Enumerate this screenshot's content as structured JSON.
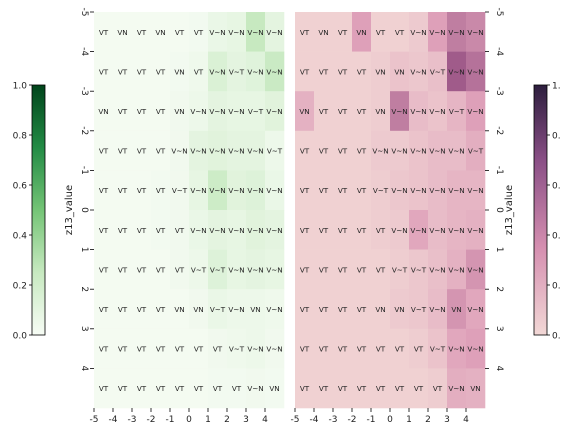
{
  "chart_data": [
    {
      "type": "heatmap",
      "panel": "left",
      "x_ticks": [
        "-5",
        "-4",
        "-3",
        "-2",
        "-1",
        "0",
        "1",
        "2",
        "3",
        "4"
      ],
      "y_ticks": [
        "-5",
        "-4",
        "-3",
        "-2",
        "-1",
        "0",
        "1",
        "2",
        "3",
        "4"
      ],
      "colormap": "Greens",
      "colorbar": {
        "label": "z13_value",
        "ticks": [
          "0.0",
          "0.2",
          "0.4",
          "0.6",
          "0.8",
          "1.0"
        ],
        "range": [
          0,
          1
        ]
      },
      "labels": [
        [
          "VT",
          "VN",
          "VT",
          "VN",
          "VT",
          "VT",
          "V~N",
          "V~N",
          "V~N",
          "V~N"
        ],
        [
          "VT",
          "VT",
          "VT",
          "VT",
          "VN",
          "VT",
          "V~N",
          "V~T",
          "V~N",
          "V~N"
        ],
        [
          "VN",
          "VT",
          "VT",
          "VT",
          "VN",
          "V~N",
          "V~N",
          "V~N",
          "V~T",
          "V~N"
        ],
        [
          "VT",
          "VT",
          "VT",
          "VT",
          "V~N",
          "V~N",
          "V~N",
          "V~N",
          "V~N",
          "V~T"
        ],
        [
          "VT",
          "VT",
          "VT",
          "VT",
          "V~T",
          "V~N",
          "V~N",
          "V~N",
          "V~N",
          "V~N"
        ],
        [
          "VT",
          "VT",
          "VT",
          "VT",
          "VT",
          "V~N",
          "V~N",
          "V~N",
          "V~N",
          "V~N"
        ],
        [
          "VT",
          "VT",
          "VT",
          "VT",
          "VT",
          "V~T",
          "V~T",
          "V~N",
          "V~N",
          "V~N"
        ],
        [
          "VT",
          "VT",
          "VT",
          "VT",
          "VN",
          "VN",
          "V~T",
          "V~N",
          "VN",
          "V~N"
        ],
        [
          "VT",
          "VT",
          "VT",
          "VT",
          "VT",
          "VT",
          "VT",
          "V~T",
          "V~N",
          "V~N"
        ],
        [
          "VT",
          "VT",
          "VT",
          "VT",
          "VT",
          "VT",
          "VT",
          "VT",
          "V~N",
          "VN"
        ]
      ],
      "values": [
        [
          0.02,
          0.02,
          0.02,
          0.02,
          0.02,
          0.03,
          0.08,
          0.1,
          0.3,
          0.12
        ],
        [
          0.02,
          0.02,
          0.02,
          0.02,
          0.03,
          0.05,
          0.18,
          0.12,
          0.15,
          0.28
        ],
        [
          0.02,
          0.02,
          0.02,
          0.02,
          0.04,
          0.06,
          0.12,
          0.1,
          0.1,
          0.14
        ],
        [
          0.02,
          0.02,
          0.02,
          0.02,
          0.04,
          0.12,
          0.14,
          0.12,
          0.12,
          0.06
        ],
        [
          0.02,
          0.02,
          0.02,
          0.03,
          0.04,
          0.1,
          0.26,
          0.14,
          0.16,
          0.08
        ],
        [
          0.02,
          0.02,
          0.02,
          0.03,
          0.04,
          0.08,
          0.12,
          0.1,
          0.14,
          0.12
        ],
        [
          0.02,
          0.02,
          0.02,
          0.02,
          0.04,
          0.06,
          0.16,
          0.1,
          0.12,
          0.1
        ],
        [
          0.02,
          0.02,
          0.02,
          0.02,
          0.02,
          0.04,
          0.08,
          0.06,
          0.06,
          0.05
        ],
        [
          0.02,
          0.02,
          0.02,
          0.02,
          0.02,
          0.02,
          0.04,
          0.05,
          0.06,
          0.04
        ],
        [
          0.02,
          0.02,
          0.02,
          0.02,
          0.02,
          0.02,
          0.03,
          0.03,
          0.04,
          0.03
        ]
      ]
    },
    {
      "type": "heatmap",
      "panel": "right",
      "x_ticks": [
        "-5",
        "-4",
        "-3",
        "-2",
        "-1",
        "0",
        "1",
        "2",
        "3",
        "4"
      ],
      "y_ticks": [
        "-5",
        "-4",
        "-3",
        "-2",
        "-1",
        "0",
        "1",
        "2",
        "3",
        "4"
      ],
      "colormap": "PuRd_like",
      "colorbar": {
        "label": "z13_value",
        "ticks": [
          "1.",
          "0.",
          "0.",
          "0.",
          "0.",
          "0."
        ]
      },
      "labels": [
        [
          "VT",
          "VN",
          "VT",
          "VN",
          "VT",
          "VT",
          "V~N",
          "V~N",
          "V~N",
          "V~N"
        ],
        [
          "VT",
          "VT",
          "VT",
          "VT",
          "VN",
          "VN",
          "V~N",
          "V~T",
          "V~N",
          "V~N"
        ],
        [
          "VN",
          "VT",
          "VT",
          "VT",
          "VN",
          "V~N",
          "V~N",
          "V~N",
          "V~T",
          "V~N"
        ],
        [
          "VT",
          "VT",
          "VT",
          "VT",
          "V~N",
          "V~N",
          "V~N",
          "V~N",
          "V~N",
          "V~T"
        ],
        [
          "VT",
          "VT",
          "VT",
          "VT",
          "V~T",
          "V~N",
          "V~N",
          "V~N",
          "V~N",
          "V~N"
        ],
        [
          "VT",
          "VT",
          "VT",
          "VT",
          "VT",
          "V~N",
          "V~N",
          "V~N",
          "V~N",
          "V~N"
        ],
        [
          "VT",
          "VT",
          "VT",
          "VT",
          "VT",
          "V~T",
          "V~T",
          "V~N",
          "V~N",
          "V~N"
        ],
        [
          "VT",
          "VT",
          "VT",
          "VT",
          "VN",
          "VN",
          "V~T",
          "V~N",
          "VN",
          "V~N"
        ],
        [
          "VT",
          "VT",
          "VT",
          "VT",
          "VT",
          "VT",
          "VT",
          "V~T",
          "V~N",
          "V~N"
        ],
        [
          "VT",
          "VT",
          "VT",
          "VT",
          "VT",
          "VT",
          "VT",
          "VT",
          "V~N",
          "VN"
        ]
      ],
      "values": [
        [
          0.05,
          0.05,
          0.05,
          0.4,
          0.05,
          0.05,
          0.1,
          0.4,
          0.55,
          0.5
        ],
        [
          0.05,
          0.05,
          0.05,
          0.05,
          0.08,
          0.15,
          0.12,
          0.18,
          0.7,
          0.6
        ],
        [
          0.28,
          0.05,
          0.05,
          0.05,
          0.08,
          0.55,
          0.2,
          0.15,
          0.25,
          0.4
        ],
        [
          0.05,
          0.05,
          0.05,
          0.05,
          0.1,
          0.1,
          0.15,
          0.2,
          0.2,
          0.3
        ],
        [
          0.05,
          0.05,
          0.05,
          0.05,
          0.08,
          0.12,
          0.15,
          0.2,
          0.25,
          0.25
        ],
        [
          0.05,
          0.05,
          0.05,
          0.05,
          0.08,
          0.1,
          0.35,
          0.2,
          0.25,
          0.28
        ],
        [
          0.05,
          0.05,
          0.05,
          0.05,
          0.05,
          0.08,
          0.12,
          0.18,
          0.28,
          0.45
        ],
        [
          0.05,
          0.05,
          0.05,
          0.05,
          0.05,
          0.1,
          0.12,
          0.2,
          0.45,
          0.35
        ],
        [
          0.05,
          0.05,
          0.05,
          0.05,
          0.05,
          0.05,
          0.08,
          0.15,
          0.35,
          0.4
        ],
        [
          0.05,
          0.05,
          0.05,
          0.05,
          0.05,
          0.05,
          0.05,
          0.08,
          0.3,
          0.28
        ]
      ]
    }
  ]
}
